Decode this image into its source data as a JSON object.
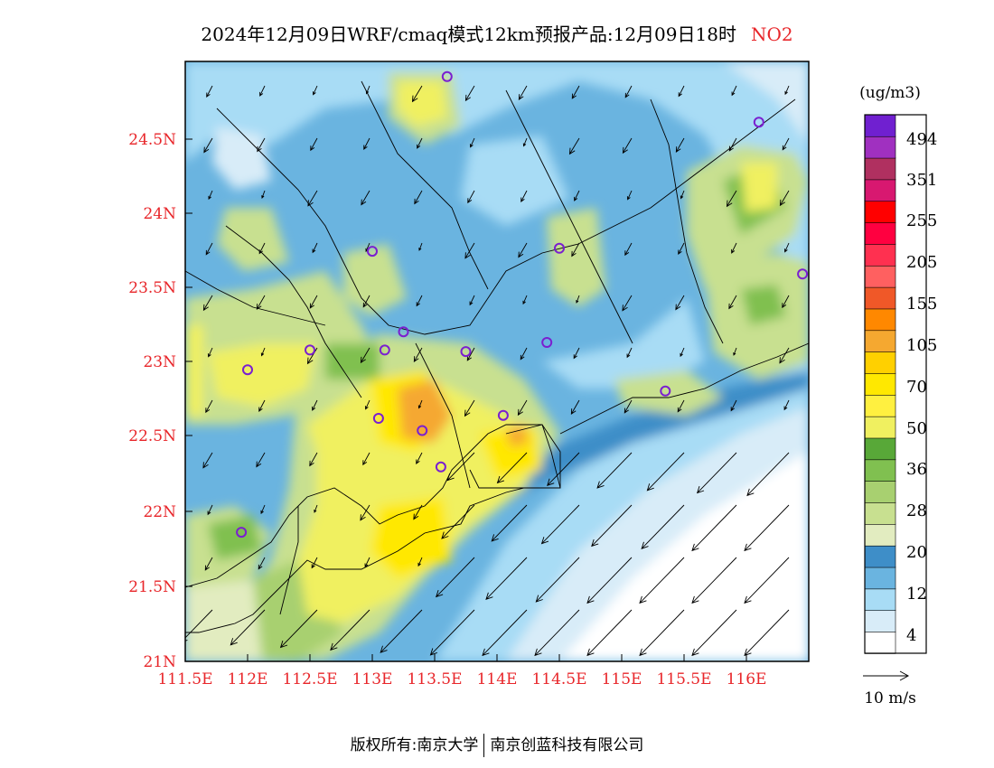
{
  "title": {
    "main": "2024年12月09日WRF/cmaq模式12km预报产品:12月09日18时",
    "pollutant": "NO2",
    "pollutant_color": "#e8262a"
  },
  "axes": {
    "lon_ticks": [
      "111.5E",
      "112E",
      "112.5E",
      "113E",
      "113.5E",
      "114E",
      "114.5E",
      "115E",
      "115.5E",
      "116E"
    ],
    "lat_ticks": [
      "24.5N",
      "24N",
      "23.5N",
      "23N",
      "22.5N",
      "22N",
      "21.5N",
      "21N"
    ],
    "tick_color": "#e8262a"
  },
  "legend": {
    "unit": "(ug/m3)",
    "labels": [
      "494",
      "351",
      "255",
      "205",
      "155",
      "105",
      "70",
      "50",
      "36",
      "28",
      "20",
      "12",
      "4"
    ],
    "colors": [
      "#ffffff",
      "#d8ecf8",
      "#a8dcf5",
      "#6ab4e0",
      "#3e8ec8",
      "#e2ecc0",
      "#c8e090",
      "#a8d070",
      "#80c050",
      "#58a838",
      "#f0f060",
      "#fff040",
      "#ffe800",
      "#ffd000",
      "#f5a830",
      "#ff8800",
      "#f05828",
      "#ff6060",
      "#ff3050",
      "#ff0040",
      "#ff0000",
      "#d81870",
      "#b03060",
      "#a030c0",
      "#7020d0"
    ]
  },
  "wind_ref": {
    "label": "10 m/s"
  },
  "footer": {
    "left": "版权所有:南京大学",
    "right": "南京创蓝科技有限公司"
  },
  "map_data": {
    "lon_range": [
      111.5,
      116.5
    ],
    "lat_range": [
      21.0,
      24.95
    ],
    "stations": [
      {
        "lon": 113.6,
        "lat": 24.85
      },
      {
        "lon": 116.1,
        "lat": 24.55
      },
      {
        "lon": 113.0,
        "lat": 23.7
      },
      {
        "lon": 114.5,
        "lat": 23.72
      },
      {
        "lon": 116.45,
        "lat": 23.55
      },
      {
        "lon": 113.25,
        "lat": 23.17
      },
      {
        "lon": 113.1,
        "lat": 23.05
      },
      {
        "lon": 113.75,
        "lat": 23.04
      },
      {
        "lon": 114.4,
        "lat": 23.1
      },
      {
        "lon": 112.5,
        "lat": 23.05
      },
      {
        "lon": 112.0,
        "lat": 22.92
      },
      {
        "lon": 113.05,
        "lat": 22.6
      },
      {
        "lon": 113.4,
        "lat": 22.52
      },
      {
        "lon": 114.05,
        "lat": 22.62
      },
      {
        "lon": 113.55,
        "lat": 22.28
      },
      {
        "lon": 115.35,
        "lat": 22.78
      },
      {
        "lon": 111.95,
        "lat": 21.85
      }
    ],
    "station_color": "#7a1fd0"
  }
}
